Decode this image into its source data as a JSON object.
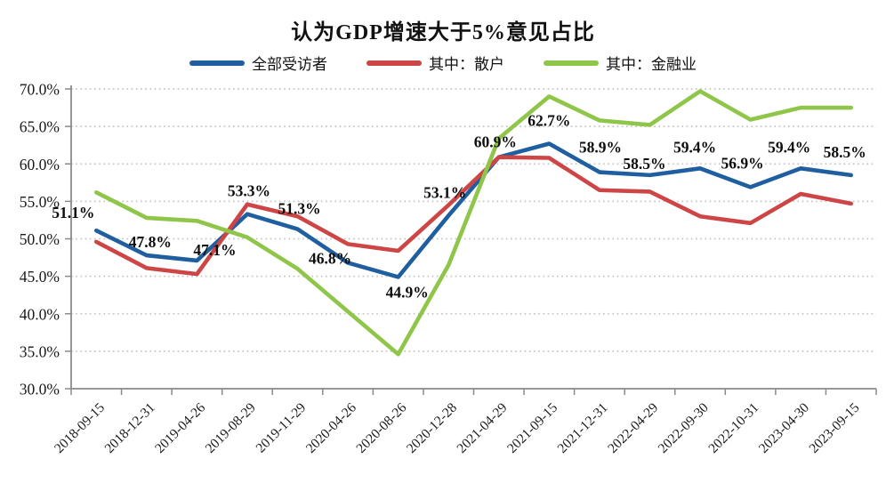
{
  "title": "认为GDP增速大于5%意见占比",
  "legend": {
    "items": [
      {
        "key": "all-respondents",
        "label": "全部受访者",
        "color": "#1F5FA0"
      },
      {
        "key": "retail-investors",
        "label": "其中：散户",
        "color": "#CE4545"
      },
      {
        "key": "financial-industry",
        "label": "其中：金融业",
        "color": "#8FC649"
      }
    ]
  },
  "chart_data": {
    "type": "line",
    "title": "认为GDP增速大于5%意见占比",
    "categories": [
      "2018-09-15",
      "2018-12-31",
      "2019-04-26",
      "2019-08-29",
      "2019-11-29",
      "2020-04-26",
      "2020-08-26",
      "2020-12-28",
      "2021-04-29",
      "2021-09-15",
      "2021-12-31",
      "2022-04-29",
      "2022-09-30",
      "2022-10-31",
      "2023-04-30",
      "2023-09-15"
    ],
    "series": [
      {
        "name": "全部受访者",
        "key": "all-respondents",
        "color": "#1F5FA0",
        "values": [
          51.1,
          47.8,
          47.1,
          53.3,
          51.3,
          46.8,
          44.9,
          53.1,
          60.9,
          62.7,
          58.9,
          58.5,
          59.4,
          56.9,
          59.4,
          58.5
        ]
      },
      {
        "name": "其中：散户",
        "key": "retail-investors",
        "color": "#CE4545",
        "values": [
          49.6,
          46.1,
          45.3,
          54.6,
          53.0,
          49.3,
          48.4,
          54.5,
          60.9,
          60.8,
          56.5,
          56.3,
          53.0,
          52.1,
          56.0,
          54.7
        ]
      },
      {
        "name": "其中：金融业",
        "key": "financial-industry",
        "color": "#8FC649",
        "values": [
          56.2,
          52.8,
          52.4,
          50.2,
          46.0,
          40.3,
          34.6,
          46.5,
          63.4,
          69.0,
          65.8,
          65.2,
          69.7,
          65.9,
          67.5,
          67.5
        ]
      }
    ],
    "data_labels": {
      "series": "全部受访者",
      "values": [
        "51.1%",
        "47.8%",
        "47.1%",
        "53.3%",
        "51.3%",
        "46.8%",
        "44.9%",
        "53.1%",
        "60.9%",
        "62.7%",
        "58.9%",
        "58.5%",
        "59.4%",
        "56.9%",
        "59.4%",
        "58.5%"
      ]
    },
    "y_axis": {
      "min": 30,
      "max": 70,
      "step": 5,
      "tick_labels": [
        "30.0%",
        "35.0%",
        "40.0%",
        "45.0%",
        "50.0%",
        "55.0%",
        "60.0%",
        "65.0%",
        "70.0%"
      ]
    },
    "x_axis": {
      "tick_rotation": -45
    },
    "grid": "horizontal-dotted",
    "legend_position": "top"
  }
}
